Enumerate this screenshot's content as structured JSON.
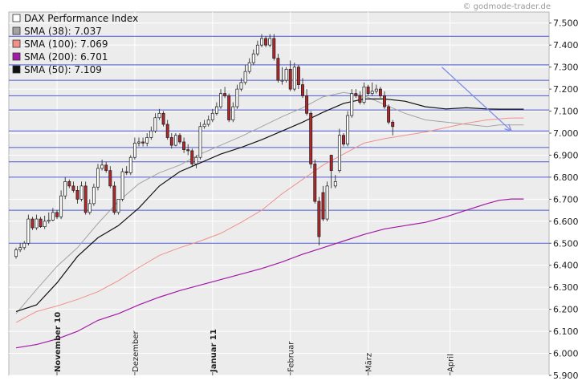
{
  "watermark": "© godmode-trader.de",
  "colors": {
    "background": "#ececec",
    "grid": "#ffffff",
    "hline": "#4a5ad4",
    "trendline": "#7e8ee8",
    "candle_up": "#ffffff",
    "candle_down": "#b0272b",
    "candle_outline": "#1b1b1b"
  },
  "chart_data": {
    "type": "candlestick",
    "title": "",
    "xlabel": "",
    "ylabel": "",
    "ylim": [
      5900,
      7550
    ],
    "grid": true,
    "legend_position": "top-left",
    "y_ticks": [
      "5.900",
      "6.000",
      "6.100",
      "6.200",
      "6.300",
      "6.400",
      "6.500",
      "6.600",
      "6.700",
      "6.800",
      "6.900",
      "7.000",
      "7.100",
      "7.200",
      "7.300",
      "7.400",
      "7.500"
    ],
    "x_tick_labels": [
      {
        "label": "November 10",
        "bar": 10,
        "bold": true
      },
      {
        "label": "Dezember",
        "bar": 29,
        "bold": false
      },
      {
        "label": "Januar 11",
        "bar": 48,
        "bold": true
      },
      {
        "label": "Februar",
        "bar": 67,
        "bold": false
      },
      {
        "label": "März",
        "bar": 86,
        "bold": false
      },
      {
        "label": "April",
        "bar": 106,
        "bold": false
      }
    ],
    "legend": [
      {
        "label": "DAX Performance Index",
        "swatch": "#ffffff"
      },
      {
        "label": "SMA (38): 7.037",
        "swatch": "#a3a3a3"
      },
      {
        "label": "SMA (100): 7.069",
        "swatch": "#f1918a"
      },
      {
        "label": "SMA (200): 6.701",
        "swatch": "#a21aa6"
      },
      {
        "label": "SMA (50): 7.109",
        "swatch": "#111111"
      }
    ],
    "horizontal_lines": [
      6500,
      6650,
      6800,
      6870,
      6935,
      7010,
      7105,
      7170,
      7240,
      7310,
      7440
    ],
    "trendline": {
      "from": [
        104,
        7300
      ],
      "to": [
        121,
        7010
      ]
    },
    "candles": {
      "open": [
        6440,
        6470,
        6480,
        6500,
        6610,
        6570,
        6610,
        6575,
        6600,
        6605,
        6640,
        6620,
        6715,
        6780,
        6760,
        6740,
        6700,
        6760,
        6640,
        6680,
        6755,
        6840,
        6855,
        6830,
        6760,
        6640,
        6700,
        6825,
        6820,
        6890,
        6955,
        6960,
        6955,
        6980,
        7010,
        7070,
        7090,
        7040,
        6980,
        6945,
        6990,
        6960,
        6925,
        6920,
        6860,
        6890,
        7030,
        7040,
        7060,
        7090,
        7120,
        7180,
        7170,
        7060,
        7120,
        7200,
        7230,
        7280,
        7320,
        7360,
        7400,
        7430,
        7400,
        7430,
        7340,
        7240,
        7240,
        7290,
        7200,
        7300,
        7220,
        7170,
        7090,
        6860,
        6690,
        6730,
        6610,
        6900,
        6760,
        6830,
        6990,
        6950,
        7080,
        7180,
        7170,
        7140,
        7210,
        7180,
        7190,
        7200,
        7170,
        7120,
        7050
      ],
      "close": [
        6470,
        6480,
        6500,
        6610,
        6570,
        6610,
        6575,
        6600,
        6605,
        6640,
        6620,
        6715,
        6780,
        6760,
        6740,
        6700,
        6760,
        6640,
        6680,
        6755,
        6840,
        6855,
        6830,
        6760,
        6640,
        6700,
        6825,
        6820,
        6890,
        6955,
        6960,
        6955,
        6980,
        7010,
        7070,
        7090,
        7040,
        6980,
        6945,
        6990,
        6960,
        6925,
        6920,
        6860,
        6890,
        7030,
        7040,
        7060,
        7090,
        7120,
        7180,
        7170,
        7060,
        7120,
        7200,
        7230,
        7280,
        7320,
        7360,
        7400,
        7430,
        7400,
        7430,
        7340,
        7240,
        7240,
        7290,
        7200,
        7300,
        7220,
        7170,
        7090,
        6860,
        6690,
        6530,
        6610,
        6760,
        6830,
        6780,
        6990,
        6950,
        7080,
        7180,
        7170,
        7140,
        7210,
        7180,
        7190,
        7200,
        7170,
        7120,
        7050,
        7030
      ],
      "high": [
        6480,
        6500,
        6510,
        6630,
        6620,
        6630,
        6620,
        6625,
        6640,
        6660,
        6650,
        6740,
        6800,
        6790,
        6780,
        6760,
        6780,
        6780,
        6700,
        6770,
        6860,
        6880,
        6870,
        6850,
        6780,
        6700,
        6840,
        6850,
        6900,
        6980,
        6980,
        6980,
        7000,
        7030,
        7090,
        7110,
        7100,
        7060,
        7000,
        7000,
        7000,
        6980,
        6950,
        6930,
        6900,
        7050,
        7060,
        7080,
        7110,
        7140,
        7200,
        7210,
        7180,
        7140,
        7220,
        7250,
        7310,
        7340,
        7380,
        7420,
        7450,
        7440,
        7450,
        7450,
        7360,
        7300,
        7300,
        7330,
        7320,
        7310,
        7250,
        7200,
        7100,
        6880,
        6710,
        6760,
        6780,
        6850,
        6810,
        7020,
        7000,
        7100,
        7200,
        7200,
        7190,
        7230,
        7220,
        7230,
        7220,
        7210,
        7190,
        7130,
        7060
      ],
      "low": [
        6430,
        6460,
        6470,
        6490,
        6560,
        6560,
        6570,
        6565,
        6590,
        6600,
        6610,
        6610,
        6700,
        6750,
        6730,
        6680,
        6690,
        6630,
        6630,
        6670,
        6740,
        6830,
        6820,
        6750,
        6630,
        6630,
        6690,
        6810,
        6810,
        6880,
        6940,
        6940,
        6940,
        6970,
        7000,
        7060,
        7030,
        6970,
        6930,
        6940,
        6950,
        6910,
        6900,
        6850,
        6840,
        6880,
        7020,
        7030,
        7050,
        7080,
        7110,
        7160,
        7050,
        7050,
        7110,
        7190,
        7220,
        7270,
        7310,
        7350,
        7390,
        7390,
        7390,
        7330,
        7230,
        7220,
        7230,
        7190,
        7190,
        7200,
        7160,
        7080,
        6840,
        6680,
        6490,
        6600,
        6600,
        6750,
        6750,
        6820,
        6940,
        6940,
        7070,
        7160,
        7130,
        7130,
        7170,
        7170,
        7180,
        7160,
        7110,
        7040,
        6990
      ]
    },
    "series": [
      {
        "name": "SMA (38)",
        "color": "#a3a3a3",
        "width": 1,
        "x": [
          0,
          5,
          10,
          15,
          20,
          25,
          30,
          35,
          40,
          45,
          50,
          55,
          60,
          65,
          70,
          75,
          80,
          85,
          90,
          95,
          100,
          105,
          110,
          115,
          118,
          121,
          124
        ],
        "values": [
          6180,
          6290,
          6395,
          6480,
          6590,
          6690,
          6770,
          6820,
          6855,
          6905,
          6945,
          6985,
          7030,
          7075,
          7115,
          7165,
          7185,
          7170,
          7130,
          7090,
          7060,
          7050,
          7040,
          7030,
          7037,
          7037,
          7037
        ]
      },
      {
        "name": "SMA (100)",
        "color": "#f1918a",
        "width": 1,
        "x": [
          0,
          5,
          10,
          15,
          20,
          25,
          30,
          35,
          40,
          45,
          50,
          55,
          60,
          65,
          70,
          75,
          80,
          85,
          90,
          95,
          100,
          105,
          110,
          115,
          118,
          121,
          124
        ],
        "values": [
          6140,
          6190,
          6215,
          6245,
          6280,
          6330,
          6390,
          6445,
          6480,
          6510,
          6545,
          6595,
          6650,
          6725,
          6790,
          6855,
          6905,
          6955,
          6975,
          6990,
          7005,
          7025,
          7045,
          7060,
          7065,
          7069,
          7069
        ]
      },
      {
        "name": "SMA (200)",
        "color": "#a21aa6",
        "width": 1.2,
        "x": [
          0,
          5,
          10,
          15,
          20,
          25,
          30,
          35,
          40,
          45,
          50,
          55,
          60,
          65,
          70,
          75,
          80,
          85,
          90,
          95,
          100,
          105,
          110,
          115,
          118,
          121,
          124
        ],
        "values": [
          6025,
          6040,
          6065,
          6100,
          6150,
          6180,
          6220,
          6255,
          6285,
          6310,
          6335,
          6360,
          6385,
          6415,
          6450,
          6480,
          6510,
          6540,
          6565,
          6580,
          6595,
          6620,
          6650,
          6680,
          6695,
          6701,
          6701
        ]
      },
      {
        "name": "SMA (50)",
        "color": "#111111",
        "width": 1.2,
        "x": [
          0,
          5,
          10,
          15,
          20,
          25,
          30,
          35,
          40,
          45,
          50,
          55,
          60,
          65,
          70,
          75,
          80,
          85,
          90,
          95,
          100,
          105,
          110,
          115,
          118,
          121,
          124
        ],
        "values": [
          6190,
          6220,
          6320,
          6440,
          6525,
          6580,
          6660,
          6760,
          6825,
          6865,
          6905,
          6935,
          6970,
          7010,
          7050,
          7095,
          7135,
          7155,
          7155,
          7145,
          7120,
          7110,
          7115,
          7110,
          7109,
          7109,
          7109
        ]
      }
    ]
  }
}
